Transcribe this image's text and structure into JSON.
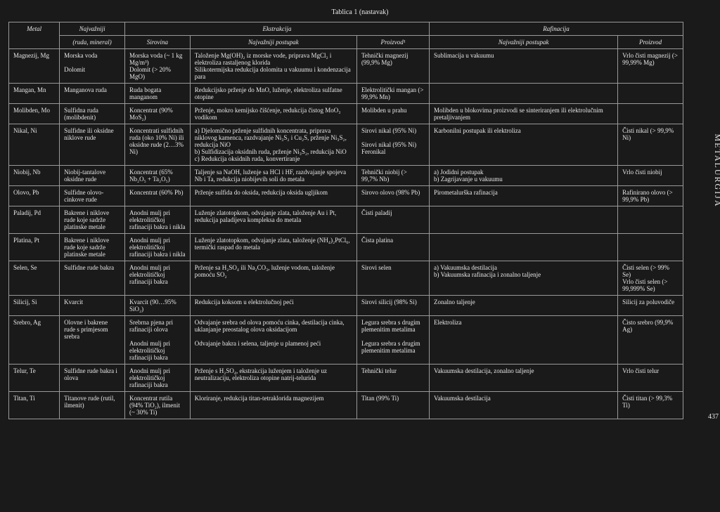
{
  "caption": "Tablica 1 (nastavak)",
  "sidetext": "METALURGIJA",
  "pagenum": "437",
  "headers": {
    "metal": "Metal",
    "mineral_top": "Najvažniji",
    "mineral_bot": "(ruda, mineral)",
    "ekstrakcija": "Ekstrakcija",
    "sirovina": "Sirovina",
    "postupak": "Najvažniji postupak",
    "proizvod1": "Proizvod¹",
    "rafinacija": "Rafinacija",
    "rpostupak": "Najvažniji postupak",
    "rproizvod": "Proizvod"
  },
  "rows": [
    {
      "metal": "Magnezij, Mg",
      "mineral": "Morska voda\n\nDolomit",
      "sirovina": "Morska voda (~ 1 kg Mg/m³)\nDolomit (> 20% MgO)",
      "postupak": "Taloženje Mg(OH)₂ iz morske vode, priprava MgCl₂ i elektroliza rastaljenog klorida\nSilikotermijska redukcija dolomita u vakuumu i kondenzacija para",
      "proizvod": "Tehnički magnezij (99,9% Mg)",
      "rpostupak": "Sublimacija u vakuumu",
      "rproizvod": "Vrlo čisti magnezij (> 99,99% Mg)"
    },
    {
      "metal": "Mangan, Mn",
      "mineral": "Manganova ruda",
      "sirovina": "Ruda bogata manganom",
      "postupak": "Redukcijsko prženje do MnO, luženje, elektroliza sulfatne otopine",
      "proizvod": "Elektrolitički mangan (> 99,9% Mn)",
      "rpostupak": "",
      "rproizvod": ""
    },
    {
      "metal": "Molibden, Mo",
      "mineral": "Sulfidna ruda (molibdenit)",
      "sirovina": "Koncentrat (90% MoS₂)",
      "postupak": "Prženje, mokro kemijsko čišćenje, redukcija čistog MoO₃ vodikom",
      "proizvod": "Molibden u prahu",
      "rpostupak": "Molibden u blokovima proizvodi se sinteriranjem ili elektrolučnim pretaljivanjem",
      "rproizvod": ""
    },
    {
      "metal": "Nikal, Ni",
      "mineral": "Sulfidne ili oksidne niklove rude",
      "sirovina": "Koncentrati sulfidnih ruda (oko 10% Ni) ili oksidne rude (2…3% Ni)",
      "postupak": "a) Djelomično prženje sulfidnih koncentrata, priprava niklovog kamenca, razdvajanje Ni₃S₂ i Cu₂S, prženje Ni₃S₂, redukcija NiO\nb) Sulfidizacija oksidnih ruda, prženje Ni₃S₂, redukcija NiO\nc) Redukcija oksidnih ruda, konvertiranje",
      "proizvod": "Sirovi nikal (95% Ni)\n\nSirovi nikal (95% Ni)\nFeronikal",
      "rpostupak": "Karbonilni postupak ili elektroliza",
      "rproizvod": "Čisti nikal (> 99,9% Ni)"
    },
    {
      "metal": "Niobij, Nb",
      "mineral": "Niobij-tantalove oksidne rude",
      "sirovina": "Koncentrat (65% Nb₂O₅ + Ta₂O₅)",
      "postupak": "Taljenje sa NaOH, luženje sa HCl i HF, razdvajanje spojeva Nb i Ta, redukcija niobijevih soli do metala",
      "proizvod": "Tehnički niobij (> 99,7% Nb)",
      "rpostupak": "a) Jodidni postupak\nb) Zagrijavanje u vakuumu",
      "rproizvod": "Vrlo čisti niobij"
    },
    {
      "metal": "Olovo, Pb",
      "mineral": "Sulfidne olovo-cinkove rude",
      "sirovina": "Koncentrat (60% Pb)",
      "postupak": "Prženje sulfida do oksida, redukcija oksida ugljikom",
      "proizvod": "Sirovo olovo (98% Pb)",
      "rpostupak": "Pirometalurška rafinacija",
      "rproizvod": "Rafinirano olovo (> 99,9% Pb)"
    },
    {
      "metal": "Paladij, Pd",
      "mineral": "Bakrene i niklove rude koje sadrže platinske metale",
      "sirovina": "Anodni mulj pri elektrolitičkoj rafinaciji bakra i nikla",
      "postupak": "Luženje zlatotopkom, odvajanje zlata, taloženje Au i Pt, redukcija paladijeva kompleksa do metala",
      "proizvod": "Čisti paladij",
      "rpostupak": "",
      "rproizvod": ""
    },
    {
      "metal": "Platina, Pt",
      "mineral": "Bakrene i niklove rude koje sadrže platinske metale",
      "sirovina": "Anodni mulj pri elektrolitičkoj rafinaciji bakra i nikla",
      "postupak": "Luženje zlatotopkom, odvajanje zlata, taloženje (NH₄)₂PtCl₆, termički raspad do metala",
      "proizvod": "Čista platina",
      "rpostupak": "",
      "rproizvod": ""
    },
    {
      "metal": "Selen, Se",
      "mineral": "Sulfidne rude bakra",
      "sirovina": "Anodni mulj pri elektrolitičkoj rafinaciji bakra",
      "postupak": "Prženje sa H₂SO₄ ili Na₂CO₃, luženje vodom, taloženje pomoću SO₂",
      "proizvod": "Sirovi selen",
      "rpostupak": "a) Vakuumska destilacija\nb) Vakuumska rafinacija i zonalno taljenje",
      "rproizvod": "Čisti selen (> 99% Se)\nVrlo čisti selen (> 99,999% Se)"
    },
    {
      "metal": "Silicij, Si",
      "mineral": "Kvarcit",
      "sirovina": "Kvarcit (90…95% SiO₂)",
      "postupak": "Redukcija koksom u elektrolučnoj peći",
      "proizvod": "Sirovi silicij (98% Si)",
      "rpostupak": "Zonalno taljenje",
      "rproizvod": "Silicij za poluvodiče"
    },
    {
      "metal": "Srebro, Ag",
      "mineral": "Olovne i bakrene rude s primjesom srebra",
      "sirovina": "Srebrna pjena pri rafinaciji olova\n\nAnodni mulj pri elektrolitičkoj rafinaciji bakra",
      "postupak": "Odvajanje srebra od olova pomoću cinka, destilacija cinka, uklanjanje preostalog olova oksidacijom\n\nOdvajanje bakra i selena, taljenje u plamenoj peći",
      "proizvod": "Legura srebra s drugim plemenitim metalima\n\nLegura srebra s drugim plemenitim metalima",
      "rpostupak": "Elektroliza",
      "rproizvod": "Čisto srebro (99,9% Ag)"
    },
    {
      "metal": "Telur, Te",
      "mineral": "Sulfidne rude bakra i olova",
      "sirovina": "Anodni mulj pri elektrolitičkoj rafinaciji bakra",
      "postupak": "Prženje s H₂SO₄, ekstrakcija luženjem i taloženje uz neutralizaciju, elektroliza otopine natrij-telurida",
      "proizvod": "Tehnički telur",
      "rpostupak": "Vakuumska destilacija, zonalno taljenje",
      "rproizvod": "Vrlo čisti telur"
    },
    {
      "metal": "Titan, Ti",
      "mineral": "Titanove rude (rutil, ilmenit)",
      "sirovina": "Koncentrat rutila (94% TiO₂), ilmenit (~ 30% Ti)",
      "postupak": "Kloriranje, redukcija titan-tetraklorida magnezijem",
      "proizvod": "Titan (99% Ti)",
      "rpostupak": "Vakuumska destilacija",
      "rproizvod": "Čisti titan (> 99,3% Ti)"
    }
  ]
}
